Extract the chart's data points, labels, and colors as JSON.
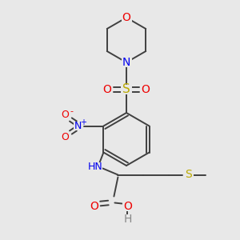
{
  "bg_color": "#e8e8e8",
  "bond_color": "#3a7a3a",
  "atom_colors": {
    "N": "#0000ee",
    "O": "#ee0000",
    "S": "#bbaa00",
    "H": "#888888",
    "C": "#333333"
  },
  "figsize": [
    3.0,
    3.0
  ],
  "dpi": 100
}
